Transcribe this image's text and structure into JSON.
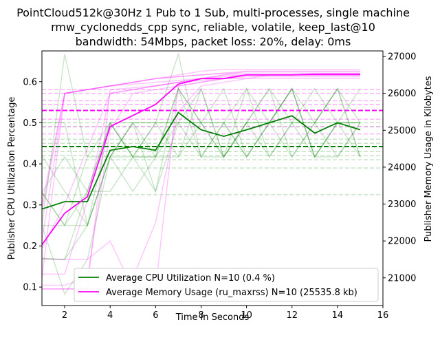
{
  "chart_data": {
    "type": "line",
    "title_lines": [
      "PointCloud512k@30Hz 1 Pub to 1 Sub, multi-processes, single machine",
      "rmw_cyclonedds_cpp sync, reliable, volatile, keep_last@10",
      "bandwidth: 54Mbps, packet loss: 20%, delay: 0ms"
    ],
    "xlabel": "Time in Seconds",
    "ylabel_left": "Publisher CPU Utilization Percentage",
    "ylabel_right": "Publisher Memory Usage in Kilobytes",
    "xlim": [
      1,
      16
    ],
    "ylim_left": [
      0.055,
      0.675
    ],
    "ylim_right": [
      20250,
      27150
    ],
    "xticks": [
      2,
      4,
      6,
      8,
      10,
      12,
      14,
      16
    ],
    "yticks_left": [
      0.1,
      0.2,
      0.3,
      0.4,
      0.5,
      0.6
    ],
    "yticks_right": [
      21000,
      22000,
      23000,
      24000,
      25000,
      26000,
      27000
    ],
    "grid": false,
    "legend_position": "bottom-right",
    "colors": {
      "cpu": "#008000",
      "mem": "#ff00ff"
    },
    "series": [
      {
        "name": "Average CPU Utilization N=10 (0.4 %)",
        "axis": "left",
        "x": [
          1,
          2,
          3,
          4,
          5,
          6,
          7,
          8,
          9,
          10,
          11,
          12,
          13,
          14,
          15
        ],
        "values": [
          0.29,
          0.308,
          0.308,
          0.433,
          0.442,
          0.433,
          0.525,
          0.483,
          0.467,
          0.483,
          0.5,
          0.517,
          0.475,
          0.5,
          0.483
        ]
      },
      {
        "name": "Average Memory Usage (ru_maxrss) N=10 (25535.8 kb)",
        "axis": "right",
        "x": [
          1,
          2,
          3,
          4,
          5,
          6,
          7,
          8,
          9,
          10,
          11,
          12,
          13,
          14,
          15
        ],
        "values": [
          21900,
          22750,
          23200,
          25100,
          25400,
          25700,
          26250,
          26400,
          26400,
          26500,
          26500,
          26500,
          26520,
          26520,
          26520
        ]
      }
    ],
    "mean_lines": [
      {
        "axis": "left",
        "value": 0.442,
        "color": "#008000"
      },
      {
        "axis": "right",
        "value": 25535.8,
        "color": "#ff00ff"
      }
    ],
    "individual_runs_cpu": [
      [
        0.25,
        0.083,
        0.167,
        0.417,
        0.417,
        0.417,
        0.583,
        0.5,
        0.417,
        0.5,
        0.5,
        0.583,
        0.417,
        0.5,
        0.5
      ],
      [
        0.33,
        0.417,
        0.333,
        0.5,
        0.417,
        0.333,
        0.5,
        0.5,
        0.5,
        0.417,
        0.5,
        0.583,
        0.5,
        0.417,
        0.5
      ],
      [
        0.25,
        0.667,
        0.417,
        0.417,
        0.5,
        0.417,
        0.417,
        0.583,
        0.417,
        0.5,
        0.583,
        0.417,
        0.5,
        0.583,
        0.417
      ],
      [
        0.17,
        0.167,
        0.333,
        0.5,
        0.417,
        0.5,
        0.667,
        0.417,
        0.5,
        0.583,
        0.417,
        0.5,
        0.583,
        0.5,
        0.5
      ],
      [
        0.33,
        0.25,
        0.25,
        0.417,
        0.5,
        0.5,
        0.5,
        0.5,
        0.583,
        0.417,
        0.5,
        0.583,
        0.417,
        0.5,
        0.583
      ],
      [
        0.42,
        0.333,
        0.25,
        0.417,
        0.333,
        0.417,
        0.5,
        0.417,
        0.417,
        0.5,
        0.5,
        0.5,
        0.5,
        0.583,
        0.417
      ],
      [
        0.25,
        0.25,
        0.333,
        0.333,
        0.417,
        0.5,
        0.417,
        0.5,
        0.5,
        0.5,
        0.583,
        0.5,
        0.417,
        0.417,
        0.5
      ],
      [
        0.5,
        0.5,
        0.25,
        0.417,
        0.5,
        0.333,
        0.583,
        0.5,
        0.417,
        0.5,
        0.417,
        0.5,
        0.5,
        0.5,
        0.417
      ],
      [
        0.17,
        0.167,
        0.25,
        0.5,
        0.417,
        0.417,
        0.583,
        0.417,
        0.5,
        0.417,
        0.5,
        0.417,
        0.5,
        0.583,
        0.5
      ],
      [
        0.33,
        0.25,
        0.417,
        0.5,
        0.5,
        0.5,
        0.5,
        0.583,
        0.417,
        0.583,
        0.5,
        0.583,
        0.417,
        0.5,
        0.5
      ]
    ],
    "individual_runs_mem": [
      [
        20700,
        20700,
        20700,
        26100,
        26150,
        26200,
        26300,
        26350,
        26400,
        26400,
        26400,
        26400,
        26400,
        26400,
        26400
      ],
      [
        21000,
        26000,
        26100,
        26200,
        26300,
        26400,
        26500,
        26600,
        26650,
        26650,
        26650,
        26650,
        26650,
        26650,
        26650
      ],
      [
        21100,
        21100,
        23100,
        26000,
        26100,
        26200,
        26300,
        26400,
        26500,
        26600,
        26600,
        26600,
        26600,
        26600,
        26600
      ],
      [
        22800,
        26000,
        26100,
        26200,
        26300,
        26400,
        26450,
        26500,
        26550,
        26550,
        26550,
        26550,
        26550,
        26550,
        26550
      ],
      [
        21500,
        21500,
        21500,
        22000,
        20700,
        20700,
        26200,
        26300,
        26400,
        26500,
        26500,
        26500,
        26500,
        26500,
        26500
      ],
      [
        20700,
        20700,
        20700,
        20700,
        21000,
        22500,
        25500,
        26200,
        26300,
        26400,
        26500,
        26500,
        26500,
        26500,
        26500
      ],
      [
        23000,
        26000,
        26100,
        26200,
        26300,
        26400,
        26450,
        26500,
        26550,
        26600,
        26600,
        26600,
        26600,
        26600,
        26600
      ],
      [
        21800,
        23000,
        24500,
        26000,
        26100,
        26200,
        26300,
        26400,
        26500,
        26500,
        26500,
        26500,
        26500,
        26500,
        26500
      ],
      [
        20800,
        20800,
        21000,
        25000,
        26000,
        26100,
        26200,
        26300,
        26400,
        26450,
        26450,
        26450,
        26450,
        26450,
        26450
      ],
      [
        22000,
        26000,
        26100,
        26200,
        26250,
        26300,
        26350,
        26400,
        26450,
        26500,
        26500,
        26500,
        26500,
        26500,
        26500
      ]
    ],
    "run_means_cpu": [
      0.325,
      0.39,
      0.41,
      0.42,
      0.43,
      0.45,
      0.46,
      0.49,
      0.5
    ],
    "run_means_mem": [
      24900,
      25100,
      25300,
      25700,
      25800,
      26000,
      26100
    ]
  }
}
